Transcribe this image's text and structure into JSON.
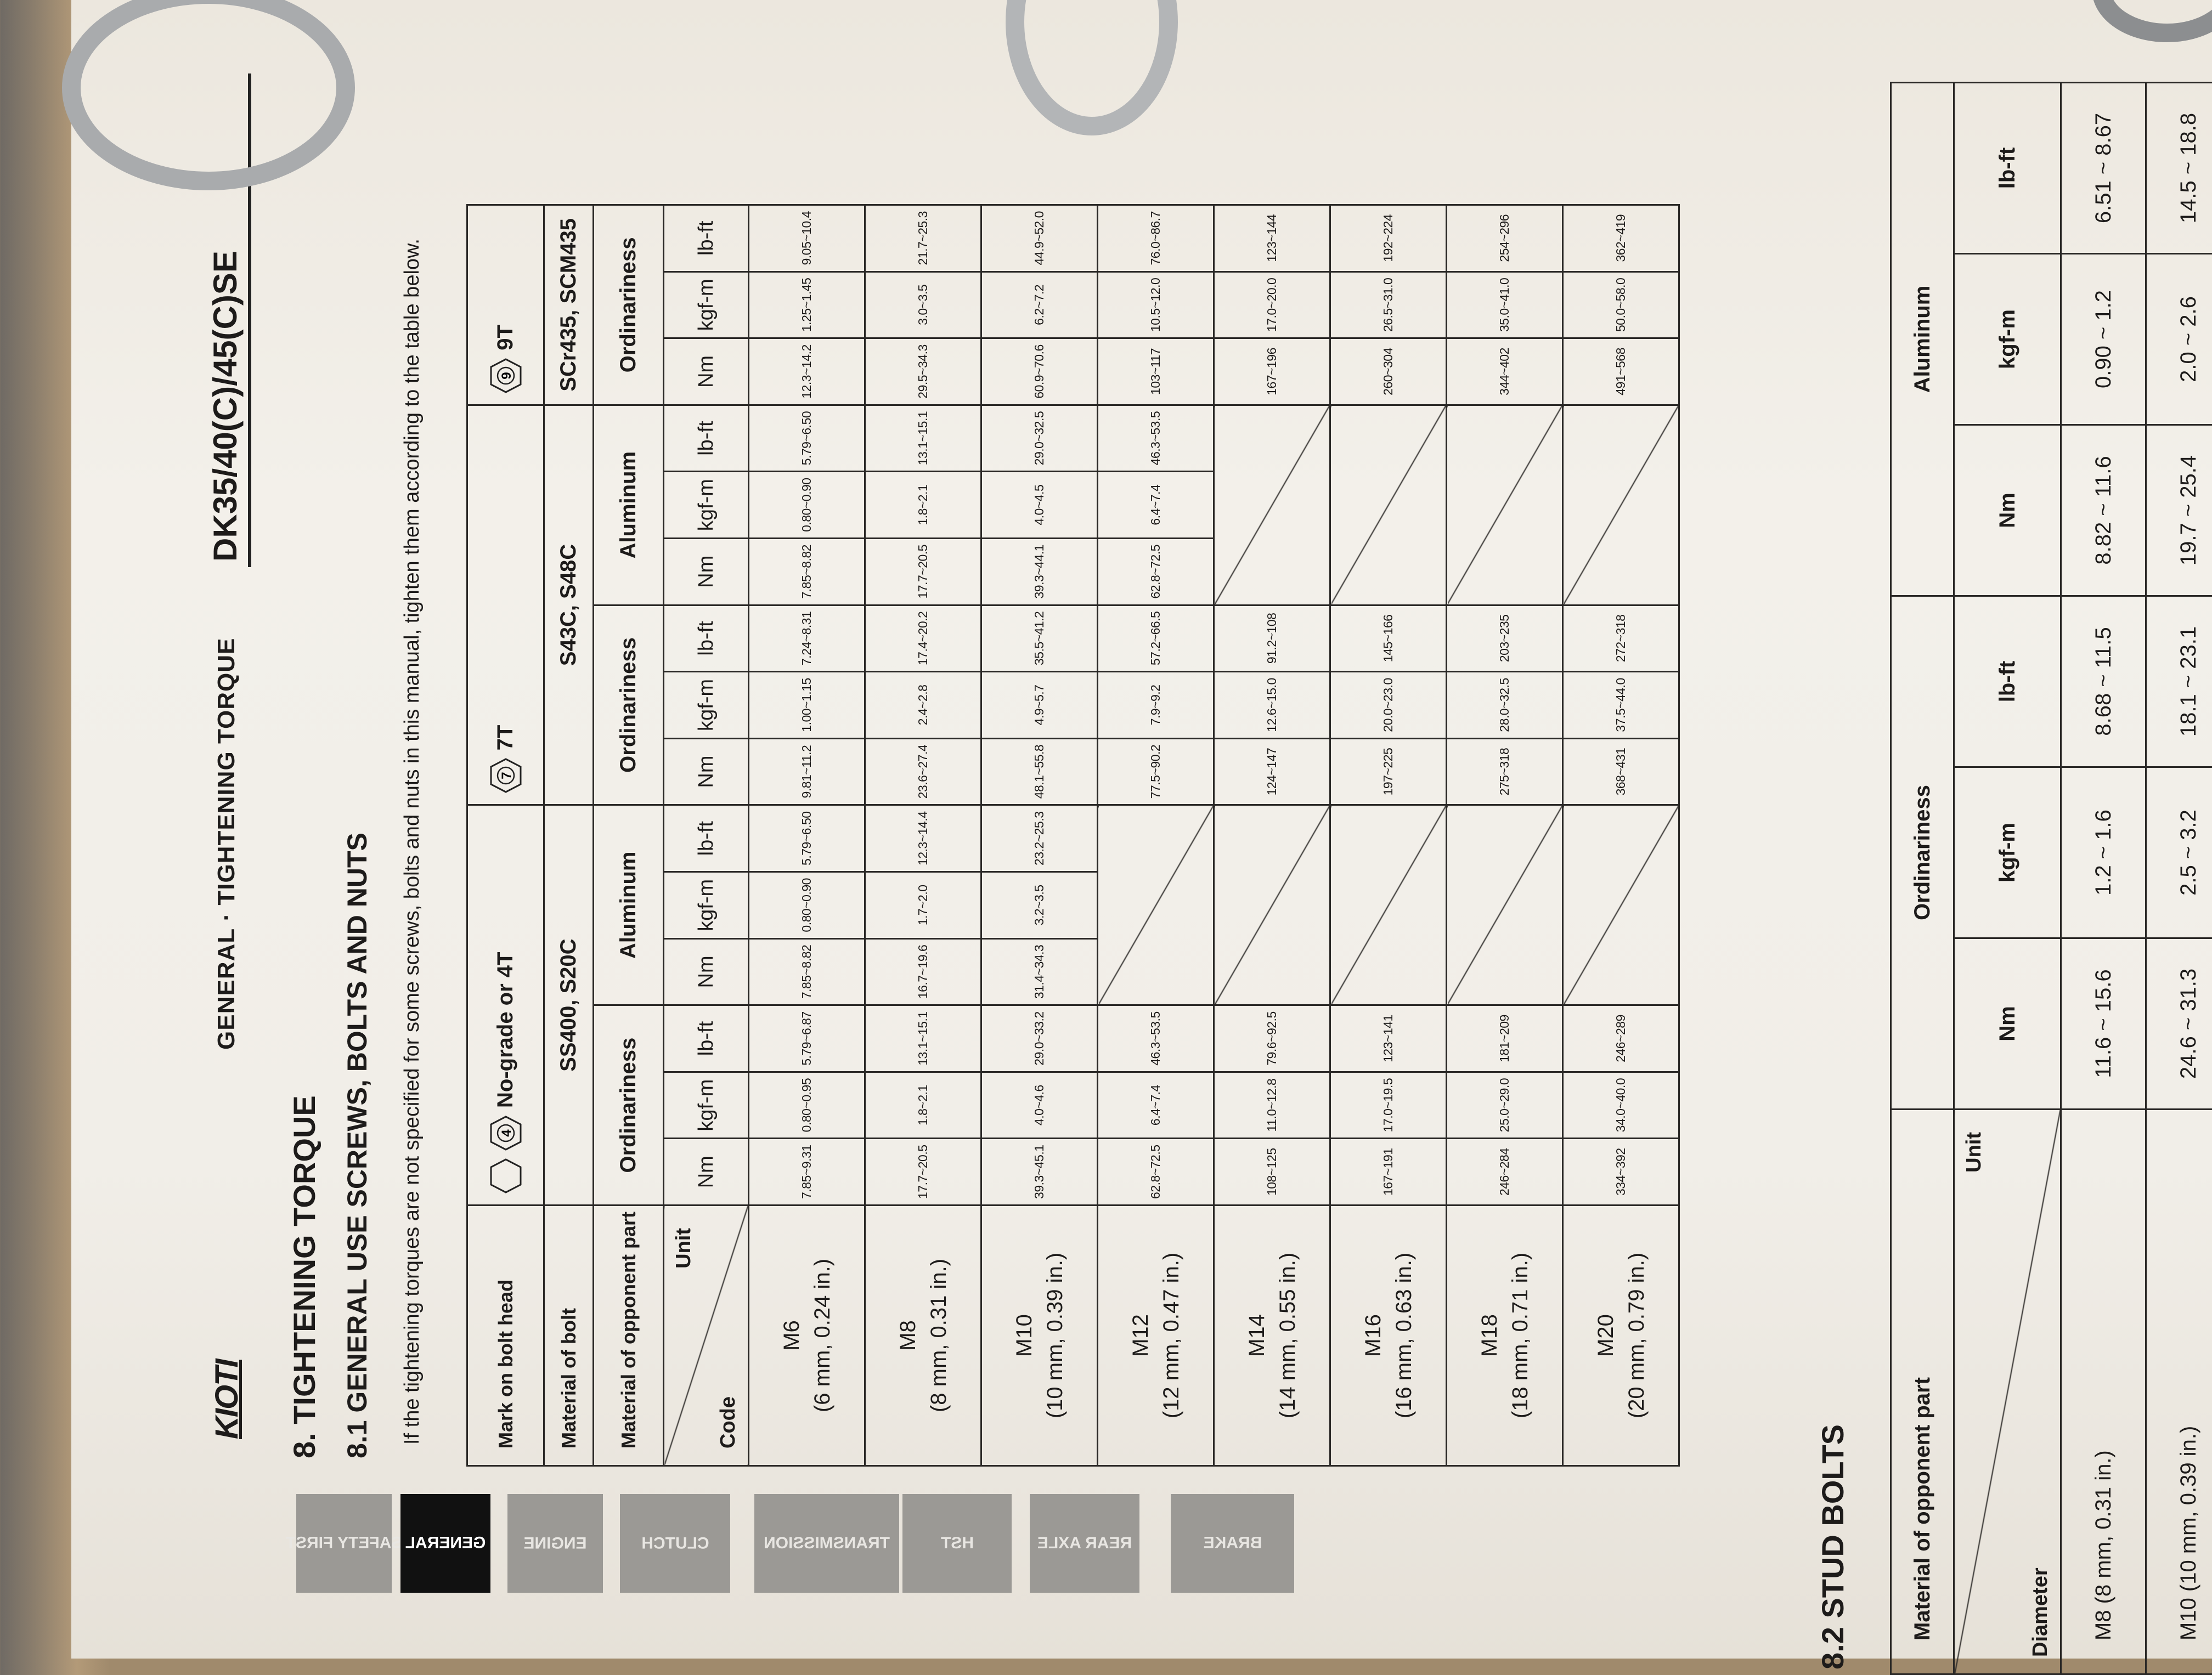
{
  "header": {
    "logo": "KIOTI",
    "section": "GENERAL · TIGHTENING TORQUE",
    "model": "DK35/40(C)/45(C)SE"
  },
  "side_tabs": [
    {
      "label": "SAFETY FIRST",
      "active": false
    },
    {
      "label": "GENERAL",
      "active": true
    },
    {
      "label": "ENGINE",
      "active": false
    },
    {
      "label": "CLUTCH",
      "active": false
    },
    {
      "label": "TRANSMISSION",
      "active": false
    },
    {
      "label": "HST",
      "active": false
    },
    {
      "label": "REAR AXLE",
      "active": false
    },
    {
      "label": "BRAKE",
      "active": false
    }
  ],
  "title": "8. TIGHTENING TORQUE",
  "subsection": "8.1 GENERAL USE SCREWS, BOLTS AND NUTS",
  "intro": "If the tightening torques are not specified for some screws, bolts and nuts in this manual, tighten them according to the table below.",
  "bolt_table": {
    "mark_label": "Mark on bolt head",
    "material_bolt_label": "Material of bolt",
    "opponent_label": "Material of opponent part",
    "unit_label": "Unit",
    "code_label": "Code",
    "units": [
      "Nm",
      "kgf-m",
      "lb-ft"
    ],
    "range_symbol": "~",
    "grades": [
      {
        "mark": "4",
        "plain_hex": true,
        "label": "No-grade or 4T",
        "material": "SS400, S20C",
        "opponents": [
          "Ordinariness",
          "Aluminum"
        ]
      },
      {
        "mark": "7",
        "plain_hex": false,
        "label": "7T",
        "material": "S43C, S48C",
        "opponents": [
          "Ordinariness",
          "Aluminum"
        ]
      },
      {
        "mark": "9",
        "plain_hex": false,
        "label": "9T",
        "material": "SCr435, SCM435",
        "opponents": [
          "Ordinariness"
        ]
      }
    ],
    "rows": [
      {
        "code": "M6",
        "size": "(6 mm, 0.24 in.)",
        "groups": [
          [
            "7.85~9.31",
            "0.80~0.95",
            "5.79~6.87"
          ],
          [
            "7.85~8.82",
            "0.80~0.90",
            "5.79~6.50"
          ],
          [
            "9.81~11.2",
            "1.00~1.15",
            "7.24~8.31"
          ],
          [
            "7.85~8.82",
            "0.80~0.90",
            "5.79~6.50"
          ],
          [
            "12.3~14.2",
            "1.25~1.45",
            "9.05~10.4"
          ]
        ]
      },
      {
        "code": "M8",
        "size": "(8 mm, 0.31 in.)",
        "groups": [
          [
            "17.7~20.5",
            "1.8~2.1",
            "13.1~15.1"
          ],
          [
            "16.7~19.6",
            "1.7~2.0",
            "12.3~14.4"
          ],
          [
            "23.6~27.4",
            "2.4~2.8",
            "17.4~20.2"
          ],
          [
            "17.7~20.5",
            "1.8~2.1",
            "13.1~15.1"
          ],
          [
            "29.5~34.3",
            "3.0~3.5",
            "21.7~25.3"
          ]
        ]
      },
      {
        "code": "M10",
        "size": "(10 mm, 0.39 in.)",
        "groups": [
          [
            "39.3~45.1",
            "4.0~4.6",
            "29.0~33.2"
          ],
          [
            "31.4~34.3",
            "3.2~3.5",
            "23.2~25.3"
          ],
          [
            "48.1~55.8",
            "4.9~5.7",
            "35.5~41.2"
          ],
          [
            "39.3~44.1",
            "4.0~4.5",
            "29.0~32.5"
          ],
          [
            "60.9~70.6",
            "6.2~7.2",
            "44.9~52.0"
          ]
        ]
      },
      {
        "code": "M12",
        "size": "(12 mm, 0.47 in.)",
        "groups": [
          [
            "62.8~72.5",
            "6.4~7.4",
            "46.3~53.5"
          ],
          null,
          [
            "77.5~90.2",
            "7.9~9.2",
            "57.2~66.5"
          ],
          [
            "62.8~72.5",
            "6.4~7.4",
            "46.3~53.5"
          ],
          [
            "103~117",
            "10.5~12.0",
            "76.0~86.7"
          ]
        ]
      },
      {
        "code": "M14",
        "size": "(14 mm, 0.55 in.)",
        "groups": [
          [
            "108~125",
            "11.0~12.8",
            "79.6~92.5"
          ],
          null,
          [
            "124~147",
            "12.6~15.0",
            "91.2~108"
          ],
          null,
          [
            "167~196",
            "17.0~20.0",
            "123~144"
          ]
        ]
      },
      {
        "code": "M16",
        "size": "(16 mm, 0.63 in.)",
        "groups": [
          [
            "167~191",
            "17.0~19.5",
            "123~141"
          ],
          null,
          [
            "197~225",
            "20.0~23.0",
            "145~166"
          ],
          null,
          [
            "260~304",
            "26.5~31.0",
            "192~224"
          ]
        ]
      },
      {
        "code": "M18",
        "size": "(18 mm, 0.71 in.)",
        "groups": [
          [
            "246~284",
            "25.0~29.0",
            "181~209"
          ],
          null,
          [
            "275~318",
            "28.0~32.5",
            "203~235"
          ],
          null,
          [
            "344~402",
            "35.0~41.0",
            "254~296"
          ]
        ]
      },
      {
        "code": "M20",
        "size": "(20 mm, 0.79 in.)",
        "groups": [
          [
            "334~392",
            "34.0~40.0",
            "246~289"
          ],
          null,
          [
            "368~431",
            "37.5~44.0",
            "272~318"
          ],
          null,
          [
            "491~568",
            "50.0~58.0",
            "362~419"
          ]
        ]
      }
    ]
  },
  "stud_section": {
    "title": "8.2 STUD BOLTS",
    "opponent_label": "Material of opponent part",
    "unit_label": "Unit",
    "diameter_label": "Diameter",
    "opponents": [
      "Ordinariness",
      "Aluminum"
    ],
    "units": [
      "Nm",
      "kgf-m",
      "lb-ft",
      "Nm",
      "kgf-m",
      "lb-ft"
    ],
    "rows": [
      {
        "diameter": "M8 (8 mm, 0.31 in.)",
        "values": [
          "11.6 ~ 15.6",
          "1.2 ~ 1.6",
          "8.68 ~ 11.5",
          "8.82 ~ 11.6",
          "0.90 ~ 1.2",
          "6.51 ~ 8.67"
        ]
      },
      {
        "diameter": "M10 (10 mm, 0.39 in.)",
        "values": [
          "24.6 ~ 31.3",
          "2.5 ~ 3.2",
          "18.1 ~ 23.1",
          "19.7 ~ 25.4",
          "2.0 ~ 2.6",
          "14.5 ~ 18.8"
        ]
      }
    ]
  }
}
